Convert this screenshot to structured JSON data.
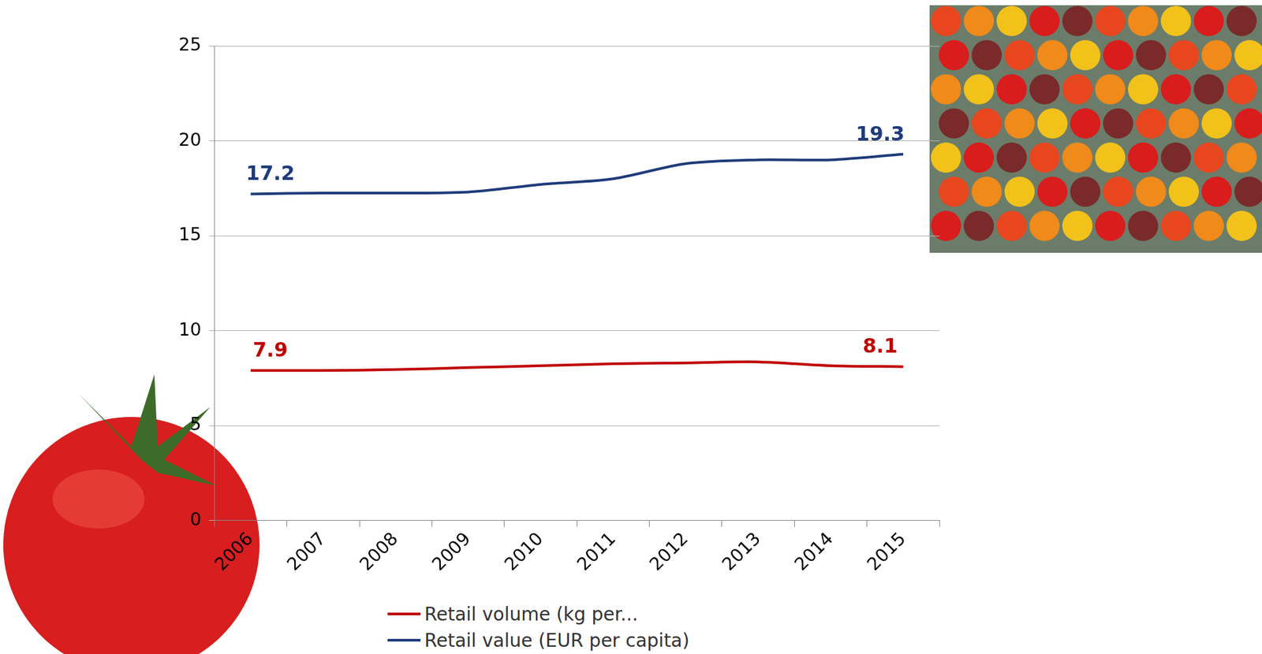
{
  "chart_data": {
    "type": "line",
    "categories": [
      "2006",
      "2007",
      "2008",
      "2009",
      "2010",
      "2011",
      "2012",
      "2013",
      "2014",
      "2015"
    ],
    "series": [
      {
        "name": "Retail volume (kg per...",
        "color": "#c00000",
        "values": [
          7.9,
          7.9,
          7.95,
          8.05,
          8.15,
          8.25,
          8.3,
          8.35,
          8.15,
          8.1
        ],
        "value_labels": [
          "7.9",
          null,
          null,
          null,
          null,
          null,
          null,
          null,
          null,
          "8.1"
        ]
      },
      {
        "name": "Retail value (EUR per capita)",
        "color": "#1f3b7a",
        "values": [
          17.2,
          17.25,
          17.25,
          17.3,
          17.7,
          18.0,
          18.8,
          19.0,
          19.0,
          19.3
        ],
        "value_labels": [
          "17.2",
          null,
          null,
          null,
          null,
          null,
          null,
          null,
          null,
          "19.3"
        ]
      }
    ],
    "ylim": [
      0,
      25
    ],
    "yticks": [
      0,
      5,
      10,
      15,
      20,
      25
    ],
    "grid": true,
    "legend": "bottom",
    "data_labels": true
  }
}
